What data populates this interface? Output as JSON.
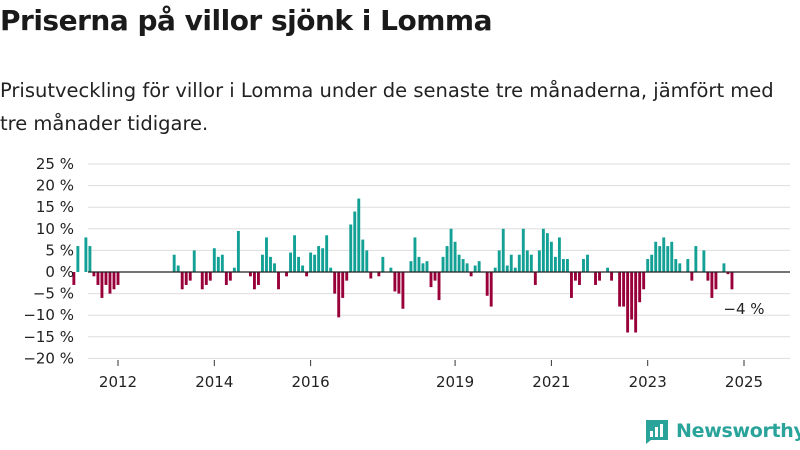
{
  "title": "Priserna på villor sjönk i Lomma",
  "subtitle": "Prisutveckling för villor i Lomma under de senaste tre månaderna, jämfört med tre månader tidigare.",
  "brand": {
    "name": "Newsworthy"
  },
  "colors": {
    "positive": "#13a095",
    "negative": "#99003a",
    "grid": "#dddddd",
    "zero": "#222222",
    "brand": "#2aa39a"
  },
  "chart_data": {
    "type": "bar",
    "title": "Priserna på villor sjönk i Lomma",
    "xlabel": "",
    "ylabel": "",
    "ylim": [
      -20,
      25
    ],
    "y_ticks": [
      25,
      20,
      15,
      10,
      5,
      0,
      -5,
      -10,
      -15,
      -20
    ],
    "y_tick_labels": [
      "25 %",
      "20 %",
      "15 %",
      "10 %",
      "5 %",
      "0 %",
      "−5 %",
      "−10 %",
      "−15 %",
      "−20 %"
    ],
    "x_tick_labels": [
      "2012",
      "2014",
      "2016",
      "2019",
      "2021",
      "2023",
      "2025"
    ],
    "x_tick_positions": [
      "2012-01",
      "2014-01",
      "2016-01",
      "2019-01",
      "2021-01",
      "2023-01",
      "2025-01"
    ],
    "grid": "horizontal",
    "annotation": {
      "text": "−4 %",
      "at": "2025-01"
    },
    "bars": [
      {
        "x": "2011-02",
        "y": -3
      },
      {
        "x": "2011-03",
        "y": 6
      },
      {
        "x": "2011-05",
        "y": 8
      },
      {
        "x": "2011-06",
        "y": 6
      },
      {
        "x": "2011-07",
        "y": -1
      },
      {
        "x": "2011-08",
        "y": -3
      },
      {
        "x": "2011-09",
        "y": -6
      },
      {
        "x": "2011-10",
        "y": -3
      },
      {
        "x": "2011-11",
        "y": -5
      },
      {
        "x": "2011-12",
        "y": -4
      },
      {
        "x": "2012-01",
        "y": -3
      },
      {
        "x": "2013-03",
        "y": 4
      },
      {
        "x": "2013-04",
        "y": 1.5
      },
      {
        "x": "2013-05",
        "y": -4
      },
      {
        "x": "2013-06",
        "y": -3
      },
      {
        "x": "2013-07",
        "y": -2
      },
      {
        "x": "2013-08",
        "y": 5
      },
      {
        "x": "2013-10",
        "y": -4
      },
      {
        "x": "2013-11",
        "y": -3
      },
      {
        "x": "2013-12",
        "y": -2
      },
      {
        "x": "2014-01",
        "y": 5.5
      },
      {
        "x": "2014-02",
        "y": 3.5
      },
      {
        "x": "2014-03",
        "y": 4
      },
      {
        "x": "2014-04",
        "y": -3
      },
      {
        "x": "2014-05",
        "y": -2
      },
      {
        "x": "2014-06",
        "y": 1
      },
      {
        "x": "2014-07",
        "y": 9.5
      },
      {
        "x": "2014-10",
        "y": -1
      },
      {
        "x": "2014-11",
        "y": -4
      },
      {
        "x": "2014-12",
        "y": -3
      },
      {
        "x": "2015-01",
        "y": 4
      },
      {
        "x": "2015-02",
        "y": 8
      },
      {
        "x": "2015-03",
        "y": 3.5
      },
      {
        "x": "2015-04",
        "y": 2
      },
      {
        "x": "2015-05",
        "y": -4
      },
      {
        "x": "2015-07",
        "y": -1
      },
      {
        "x": "2015-08",
        "y": 4.5
      },
      {
        "x": "2015-09",
        "y": 8.5
      },
      {
        "x": "2015-10",
        "y": 3.5
      },
      {
        "x": "2015-11",
        "y": 1.5
      },
      {
        "x": "2015-12",
        "y": -1
      },
      {
        "x": "2016-01",
        "y": 4.5
      },
      {
        "x": "2016-02",
        "y": 4
      },
      {
        "x": "2016-03",
        "y": 6
      },
      {
        "x": "2016-04",
        "y": 5.5
      },
      {
        "x": "2016-05",
        "y": 8.5
      },
      {
        "x": "2016-06",
        "y": 1
      },
      {
        "x": "2016-07",
        "y": -5
      },
      {
        "x": "2016-08",
        "y": -10.5
      },
      {
        "x": "2016-09",
        "y": -6
      },
      {
        "x": "2016-10",
        "y": -2
      },
      {
        "x": "2016-11",
        "y": 11
      },
      {
        "x": "2016-12",
        "y": 14
      },
      {
        "x": "2017-01",
        "y": 17
      },
      {
        "x": "2017-02",
        "y": 7.5
      },
      {
        "x": "2017-03",
        "y": 5
      },
      {
        "x": "2017-04",
        "y": -1.5
      },
      {
        "x": "2017-06",
        "y": -1
      },
      {
        "x": "2017-07",
        "y": 3.5
      },
      {
        "x": "2017-09",
        "y": 1
      },
      {
        "x": "2017-10",
        "y": -4.5
      },
      {
        "x": "2017-11",
        "y": -5
      },
      {
        "x": "2017-12",
        "y": -8.5
      },
      {
        "x": "2018-02",
        "y": 2.5
      },
      {
        "x": "2018-03",
        "y": 8
      },
      {
        "x": "2018-04",
        "y": 3.5
      },
      {
        "x": "2018-05",
        "y": 2
      },
      {
        "x": "2018-06",
        "y": 2.5
      },
      {
        "x": "2018-07",
        "y": -3.5
      },
      {
        "x": "2018-08",
        "y": -2
      },
      {
        "x": "2018-09",
        "y": -6.5
      },
      {
        "x": "2018-10",
        "y": 3.5
      },
      {
        "x": "2018-11",
        "y": 6
      },
      {
        "x": "2018-12",
        "y": 10
      },
      {
        "x": "2019-01",
        "y": 7
      },
      {
        "x": "2019-02",
        "y": 4
      },
      {
        "x": "2019-03",
        "y": 3
      },
      {
        "x": "2019-04",
        "y": 2
      },
      {
        "x": "2019-05",
        "y": -1
      },
      {
        "x": "2019-06",
        "y": 1.5
      },
      {
        "x": "2019-07",
        "y": 2.5
      },
      {
        "x": "2019-09",
        "y": -5.5
      },
      {
        "x": "2019-10",
        "y": -8
      },
      {
        "x": "2019-11",
        "y": 1
      },
      {
        "x": "2019-12",
        "y": 5
      },
      {
        "x": "2020-01",
        "y": 10
      },
      {
        "x": "2020-02",
        "y": 1.5
      },
      {
        "x": "2020-03",
        "y": 4
      },
      {
        "x": "2020-04",
        "y": 1
      },
      {
        "x": "2020-05",
        "y": 4
      },
      {
        "x": "2020-06",
        "y": 10
      },
      {
        "x": "2020-07",
        "y": 5
      },
      {
        "x": "2020-08",
        "y": 4
      },
      {
        "x": "2020-09",
        "y": -3
      },
      {
        "x": "2020-10",
        "y": 5
      },
      {
        "x": "2020-11",
        "y": 10
      },
      {
        "x": "2020-12",
        "y": 9
      },
      {
        "x": "2021-01",
        "y": 7
      },
      {
        "x": "2021-02",
        "y": 3.5
      },
      {
        "x": "2021-03",
        "y": 8
      },
      {
        "x": "2021-04",
        "y": 3
      },
      {
        "x": "2021-05",
        "y": 3
      },
      {
        "x": "2021-06",
        "y": -6
      },
      {
        "x": "2021-07",
        "y": -2
      },
      {
        "x": "2021-08",
        "y": -3
      },
      {
        "x": "2021-09",
        "y": 3
      },
      {
        "x": "2021-10",
        "y": 4
      },
      {
        "x": "2021-12",
        "y": -3
      },
      {
        "x": "2022-01",
        "y": -2
      },
      {
        "x": "2022-03",
        "y": 1
      },
      {
        "x": "2022-04",
        "y": -2
      },
      {
        "x": "2022-06",
        "y": -8
      },
      {
        "x": "2022-07",
        "y": -8
      },
      {
        "x": "2022-08",
        "y": -14
      },
      {
        "x": "2022-09",
        "y": -11
      },
      {
        "x": "2022-10",
        "y": -14
      },
      {
        "x": "2022-11",
        "y": -7
      },
      {
        "x": "2022-12",
        "y": -4
      },
      {
        "x": "2023-01",
        "y": 3
      },
      {
        "x": "2023-02",
        "y": 4
      },
      {
        "x": "2023-03",
        "y": 7
      },
      {
        "x": "2023-04",
        "y": 6
      },
      {
        "x": "2023-05",
        "y": 8
      },
      {
        "x": "2023-06",
        "y": 6
      },
      {
        "x": "2023-07",
        "y": 7
      },
      {
        "x": "2023-08",
        "y": 3
      },
      {
        "x": "2023-09",
        "y": 2
      },
      {
        "x": "2023-11",
        "y": 3
      },
      {
        "x": "2023-12",
        "y": -2
      },
      {
        "x": "2024-01",
        "y": 6
      },
      {
        "x": "2024-03",
        "y": 5
      },
      {
        "x": "2024-04",
        "y": -2
      },
      {
        "x": "2024-05",
        "y": -6
      },
      {
        "x": "2024-06",
        "y": -4
      },
      {
        "x": "2024-08",
        "y": 2
      },
      {
        "x": "2024-09",
        "y": -0.5
      },
      {
        "x": "2024-10",
        "y": -4
      }
    ]
  }
}
